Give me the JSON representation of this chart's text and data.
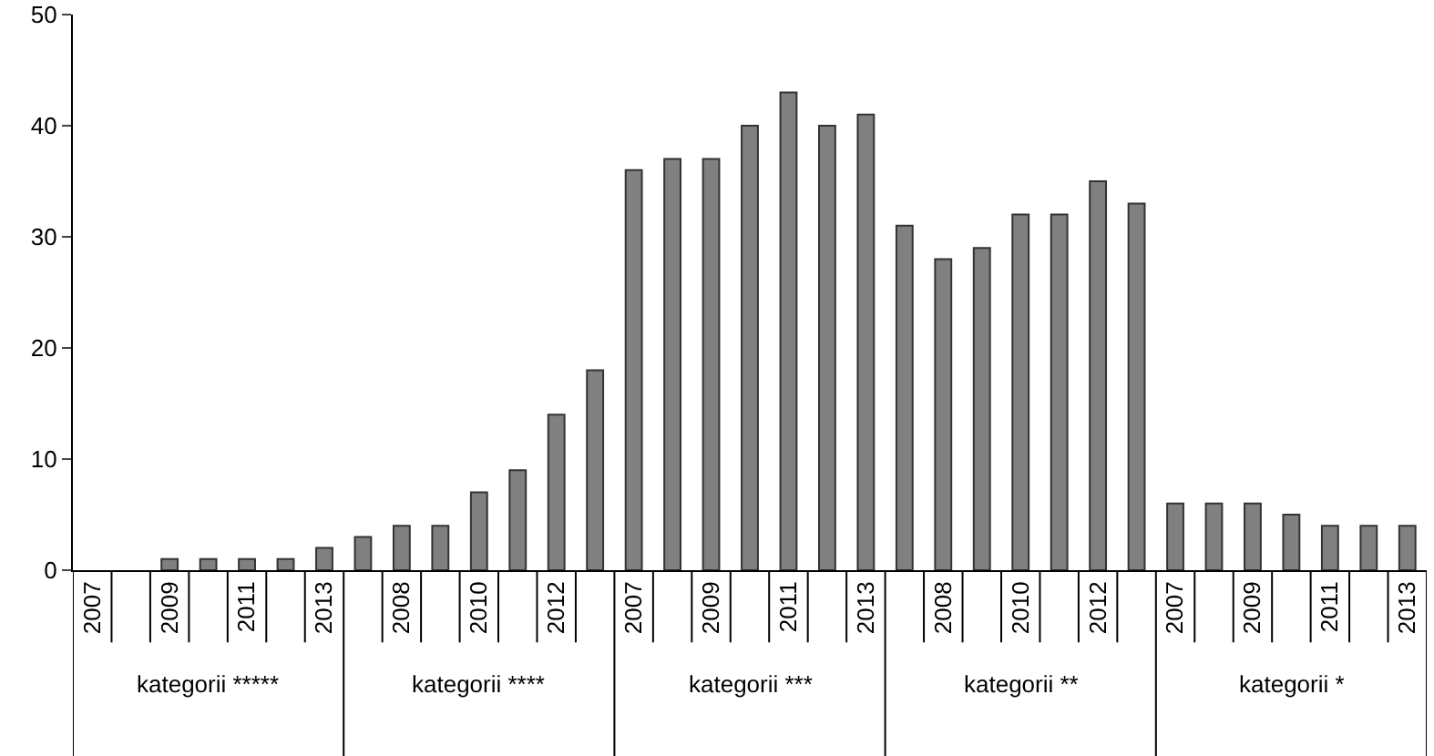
{
  "chart_data": {
    "type": "bar",
    "categories": [
      "2007",
      null,
      "2009",
      null,
      "2011",
      null,
      "2013",
      null,
      "2008",
      null,
      "2010",
      null,
      "2012",
      null,
      "2007",
      null,
      "2009",
      null,
      "2011",
      null,
      "2013",
      null,
      "2008",
      null,
      "2010",
      null,
      "2012",
      null,
      "2007",
      null,
      "2009",
      null,
      "2011",
      null,
      "2013"
    ],
    "values": [
      0,
      0,
      1,
      1,
      1,
      1,
      2,
      3,
      4,
      4,
      7,
      9,
      14,
      18,
      36,
      37,
      37,
      40,
      43,
      40,
      41,
      31,
      28,
      29,
      32,
      32,
      35,
      33,
      6,
      6,
      6,
      5,
      4,
      4,
      4
    ],
    "color": "#808080",
    "annotations": [
      "kategorii *****",
      "kategorii ****",
      "kategorii ***",
      "kategorii **",
      "kategorii *"
    ],
    "ylim": [
      0,
      50
    ],
    "yticks": [
      0,
      10,
      20,
      30,
      40,
      50
    ],
    "grid": false,
    "legend": false
  }
}
